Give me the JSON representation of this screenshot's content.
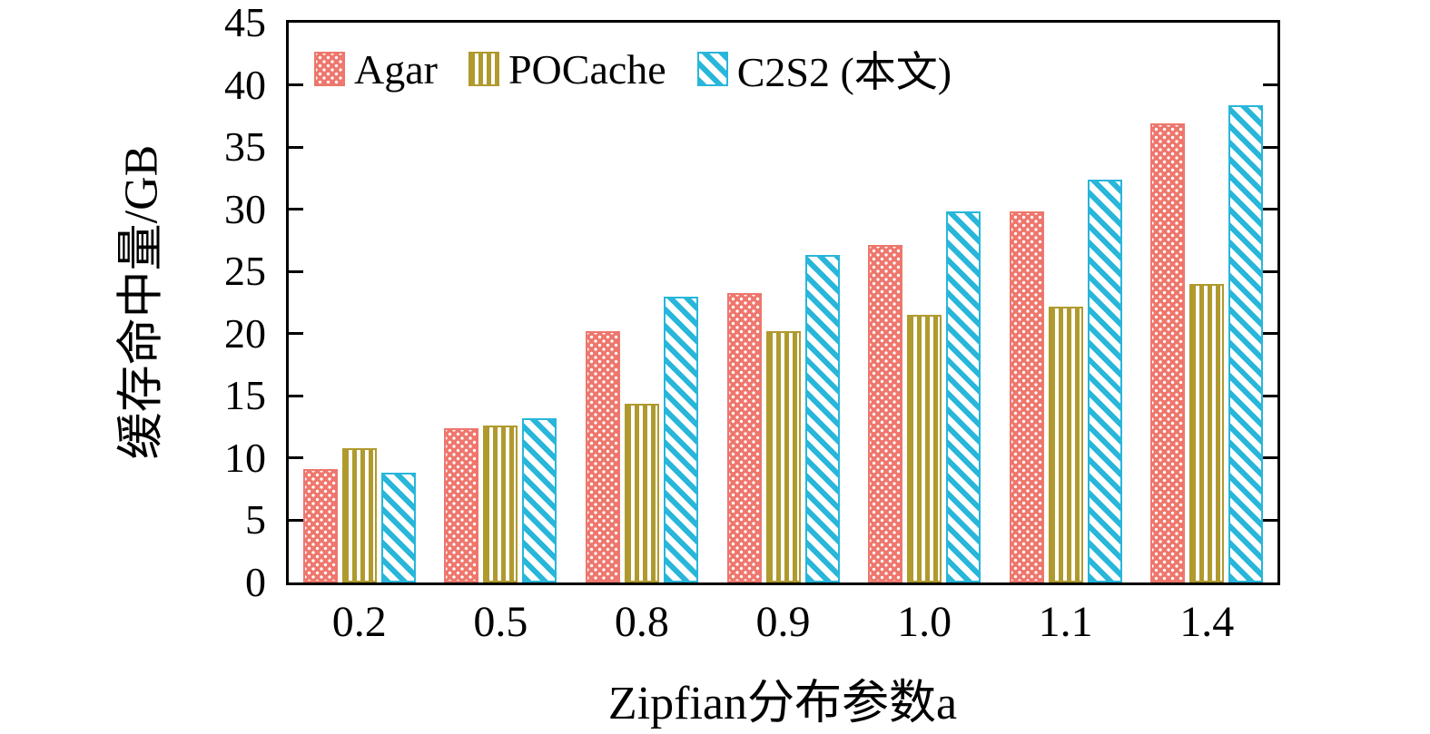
{
  "chart_data": {
    "type": "bar",
    "title": "",
    "xlabel": "Zipfian分布参数a",
    "ylabel": "缓存命中量/GB",
    "categories": [
      "0.2",
      "0.5",
      "0.8",
      "0.9",
      "1.0",
      "1.1",
      "1.4"
    ],
    "series": [
      {
        "name": "Agar",
        "color": "#ee776d",
        "pattern": "dots",
        "values": [
          9.1,
          12.4,
          20.2,
          23.3,
          27.1,
          29.8,
          36.9
        ]
      },
      {
        "name": "POCache",
        "color": "#b09a2e",
        "pattern": "vertical-stripes",
        "values": [
          10.8,
          12.6,
          14.4,
          20.2,
          21.5,
          22.2,
          24.0
        ]
      },
      {
        "name": "C2S2 (本文)",
        "color": "#28b6da",
        "pattern": "diagonal-stripes",
        "values": [
          8.8,
          13.2,
          23.0,
          26.3,
          29.8,
          32.4,
          38.4
        ]
      }
    ],
    "ylim": [
      0,
      45
    ],
    "ytick_step": 5,
    "grid": false,
    "legend_position": "top-left-inside"
  }
}
